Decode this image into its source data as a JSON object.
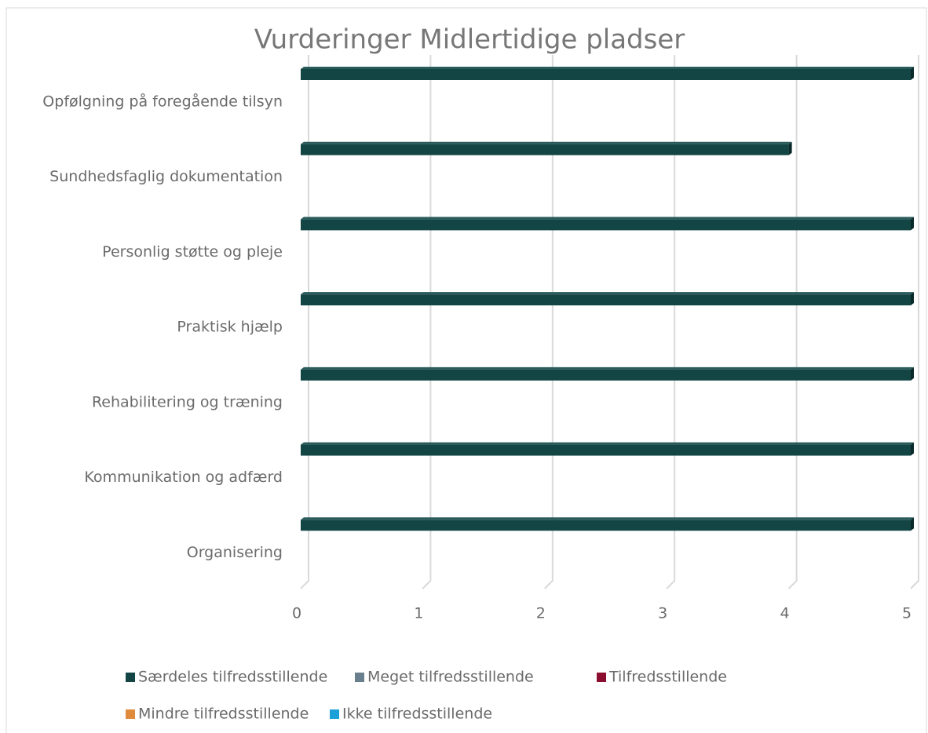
{
  "chart_data": {
    "type": "bar",
    "orientation": "horizontal",
    "title": "Vurderinger Midlertidige pladser",
    "categories": [
      "Opfølgning på foregående tilsyn",
      "Sundhedsfaglig dokumentation",
      "Personlig støtte og pleje",
      "Praktisk hjælp",
      "Rehabilitering og træning",
      "Kommunikation og adfærd",
      "Organisering"
    ],
    "series": [
      {
        "name": "Særdeles tilfredsstillende",
        "color": "#134545",
        "values": [
          5,
          4,
          5,
          5,
          5,
          5,
          5
        ]
      },
      {
        "name": "Meget tilfredsstillende",
        "color": "#6a7f8d",
        "values": [
          null,
          null,
          null,
          null,
          null,
          null,
          null
        ]
      },
      {
        "name": "Tilfredsstillende",
        "color": "#8b0d2f",
        "values": [
          null,
          null,
          null,
          null,
          null,
          null,
          null
        ]
      },
      {
        "name": "Mindre tilfredsstillende",
        "color": "#e08a3c",
        "values": [
          null,
          null,
          null,
          null,
          null,
          null,
          null
        ]
      },
      {
        "name": "Ikke tilfredsstillende",
        "color": "#1ba1d8",
        "values": [
          null,
          null,
          null,
          null,
          null,
          null,
          null
        ]
      }
    ],
    "xlim": [
      0,
      5
    ],
    "xticks": [
      0,
      1,
      2,
      3,
      4,
      5
    ],
    "grid": true,
    "legend": "bottom"
  }
}
